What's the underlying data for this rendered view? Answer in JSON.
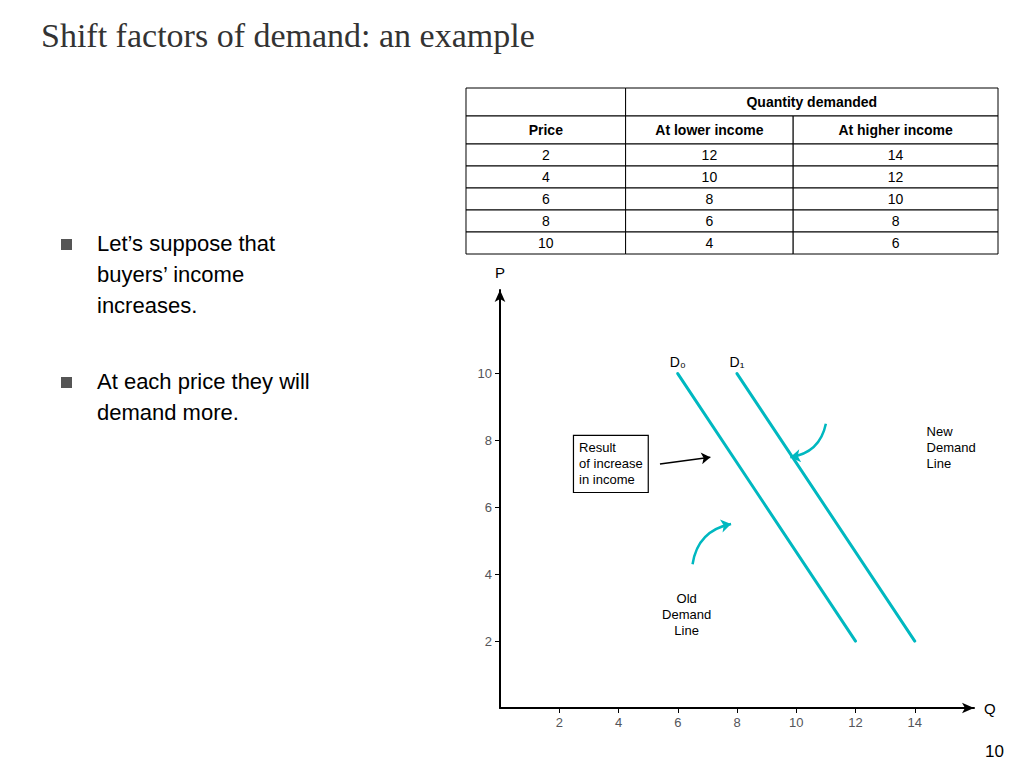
{
  "title": "Shift factors of demand: an example",
  "bullets": [
    [
      "Let’s suppose that",
      "buyers’ income",
      "increases."
    ],
    [
      "At each price they will",
      "demand more."
    ]
  ],
  "page_number": "10",
  "chart_data": [
    {
      "type": "table",
      "header": "Quantity demanded",
      "columns": [
        "Price",
        "At lower income",
        "At higher income"
      ],
      "rows": [
        [
          2,
          12,
          14
        ],
        [
          4,
          10,
          12
        ],
        [
          6,
          8,
          10
        ],
        [
          8,
          6,
          8
        ],
        [
          10,
          4,
          6
        ]
      ]
    },
    {
      "type": "line",
      "xlabel": "Q",
      "ylabel": "P",
      "xlim": [
        0,
        16
      ],
      "ylim": [
        0,
        12.5
      ],
      "xticks": [
        2,
        4,
        6,
        8,
        10,
        12,
        14
      ],
      "yticks": [
        2,
        4,
        6,
        8,
        10
      ],
      "grid": false,
      "series": [
        {
          "name": "D₀",
          "color": "#00B8C0",
          "x": [
            6,
            12
          ],
          "values": [
            10,
            2
          ]
        },
        {
          "name": "D₁",
          "color": "#00B8C0",
          "x": [
            8,
            14
          ],
          "values": [
            10,
            2
          ]
        }
      ],
      "annotations": [
        "Old\nDemand\nLine",
        "New\nDemand\nLine",
        "Result\nof increase\nin income"
      ]
    }
  ]
}
